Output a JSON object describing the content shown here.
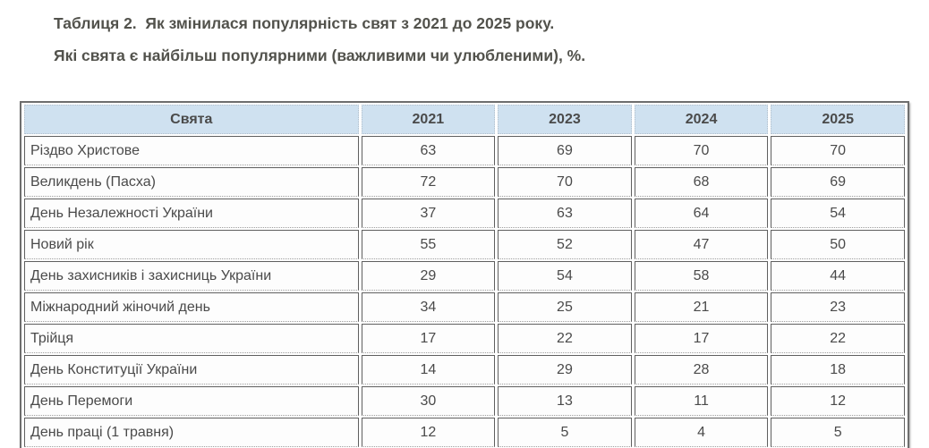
{
  "title": {
    "line1": "Таблиця 2.  Як змінилася популярність свят з 2021 до 2025 року.",
    "line2": "Які свята є найбільш популярними (важливими чи улюбленими), %."
  },
  "table": {
    "columns": [
      "Свята",
      "2021",
      "2023",
      "2024",
      "2025"
    ],
    "rows": [
      {
        "name": "Різдво Христове",
        "values": [
          63,
          69,
          70,
          70
        ]
      },
      {
        "name": "Великдень (Пасха)",
        "values": [
          72,
          70,
          68,
          69
        ]
      },
      {
        "name": "День Незалежності України",
        "values": [
          37,
          63,
          64,
          54
        ]
      },
      {
        "name": "Новий рік",
        "values": [
          55,
          52,
          47,
          50
        ]
      },
      {
        "name": "День захисників і захисниць України",
        "values": [
          29,
          54,
          58,
          44
        ]
      },
      {
        "name": "Міжнародний жіночий день",
        "values": [
          34,
          25,
          21,
          23
        ]
      },
      {
        "name": "Трійця",
        "values": [
          17,
          22,
          17,
          22
        ]
      },
      {
        "name": "День Конституції України",
        "values": [
          14,
          29,
          28,
          18
        ]
      },
      {
        "name": "День Перемоги",
        "values": [
          30,
          13,
          11,
          12
        ]
      },
      {
        "name": "День праці (1 травня)",
        "values": [
          12,
          5,
          4,
          5
        ]
      }
    ]
  },
  "colors": {
    "header_bg": "#cfe1f0",
    "title_text": "#52524c",
    "cell_text": "#4a4a4a",
    "outer_border": "#6e6e6e",
    "cell_border": "#5f5f5f",
    "dotted_border": "#9e9e9e"
  },
  "chart_data": {
    "type": "table",
    "title": "Таблиця 2. Як змінилася популярність свят з 2021 до 2025 року. Які свята є найбільш популярними (важливими чи улюбленими), %.",
    "categories": [
      "Різдво Христове",
      "Великдень (Пасха)",
      "День Незалежності України",
      "Новий рік",
      "День захисників і захисниць України",
      "Міжнародний жіночий день",
      "Трійця",
      "День Конституції України",
      "День Перемоги",
      "День праці (1 травня)"
    ],
    "series": [
      {
        "name": "2021",
        "values": [
          63,
          72,
          37,
          55,
          29,
          34,
          17,
          14,
          30,
          12
        ]
      },
      {
        "name": "2023",
        "values": [
          69,
          70,
          63,
          52,
          54,
          25,
          22,
          29,
          13,
          5
        ]
      },
      {
        "name": "2024",
        "values": [
          70,
          68,
          64,
          47,
          58,
          21,
          17,
          28,
          11,
          4
        ]
      },
      {
        "name": "2025",
        "values": [
          70,
          69,
          54,
          50,
          44,
          23,
          22,
          18,
          12,
          5
        ]
      }
    ],
    "unit": "%"
  }
}
